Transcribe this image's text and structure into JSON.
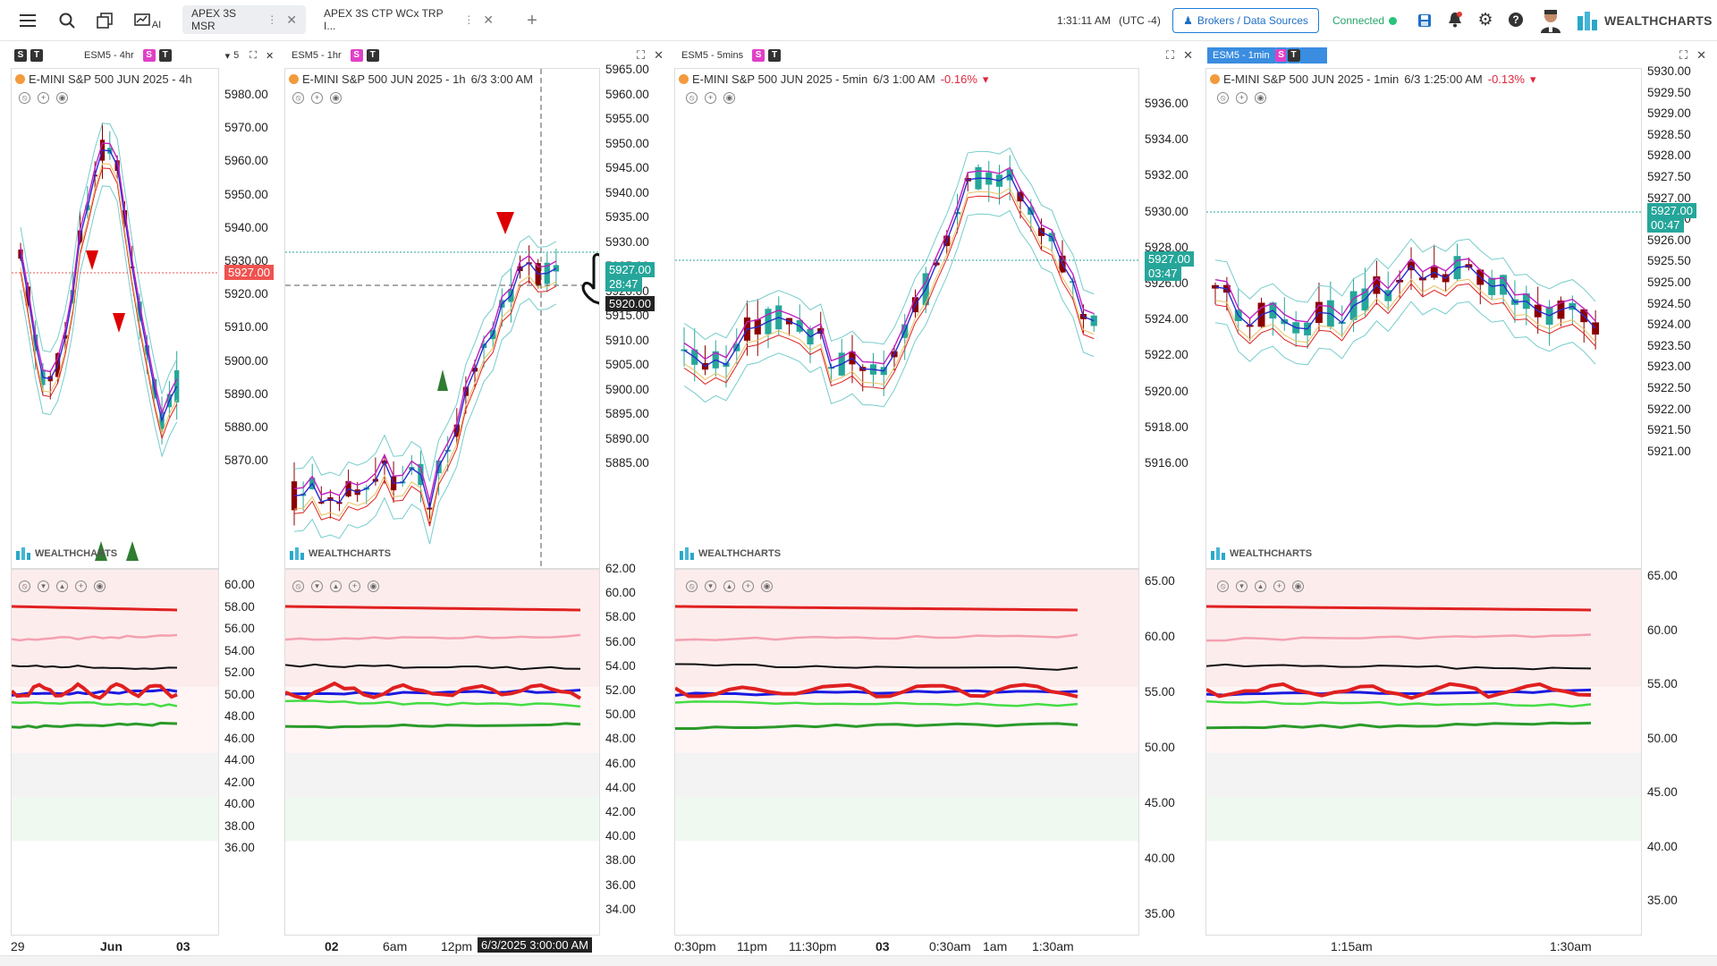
{
  "topbar": {
    "menu_icon": "menu-icon",
    "tabs": [
      {
        "label": "APEX 3S MSR"
      },
      {
        "label": "APEX 3S CTP WCx TRP I..."
      }
    ],
    "clock": "1:31:11 AM",
    "tz": "(UTC -4)",
    "brokers_label": "Brokers / Data Sources",
    "connected_label": "Connected",
    "brand": "WEALTHCHARTS",
    "ai_label": "AI",
    "layout_count": "5"
  },
  "panes": [
    {
      "symbol": "ESM5 - 4hr",
      "title": "E-MINI S&P 500 JUN 2025 - 4h",
      "price_ticks": [
        "5980.00",
        "5970.00",
        "5960.00",
        "5950.00",
        "5940.00",
        "5930.00",
        "5920.00",
        "5910.00",
        "5900.00",
        "5890.00",
        "5880.00",
        "5870.00"
      ],
      "price_label": "5927.00",
      "osc_ticks": [
        "60.00",
        "58.00",
        "56.00",
        "54.00",
        "52.00",
        "50.00",
        "48.00",
        "46.00",
        "44.00",
        "42.00",
        "40.00",
        "38.00",
        "36.00"
      ],
      "x_ticks": [
        "29",
        "Jun",
        "03"
      ]
    },
    {
      "symbol": "ESM5 - 1hr",
      "title": "E-MINI S&P 500 JUN 2025 - 1h",
      "date": "6/3 3:00 AM",
      "price_ticks": [
        "5965.00",
        "5960.00",
        "5955.00",
        "5950.00",
        "5945.00",
        "5940.00",
        "5935.00",
        "5930.00",
        "5925.00",
        "5920.00",
        "5915.00",
        "5910.00",
        "5905.00",
        "5900.00",
        "5895.00",
        "5890.00",
        "5885.00"
      ],
      "price_label": "5927.00",
      "countdown": "28:47",
      "crosshair_label": "5920.00",
      "osc_ticks": [
        "62.00",
        "60.00",
        "58.00",
        "56.00",
        "54.00",
        "52.00",
        "50.00",
        "48.00",
        "46.00",
        "44.00",
        "42.00",
        "40.00",
        "38.00",
        "36.00",
        "34.00"
      ],
      "x_ticks": [
        "02",
        "6am",
        "12pm"
      ],
      "crosshair_date": "6/3/2025 3:00:00 AM"
    },
    {
      "symbol": "ESM5 - 5mins",
      "title": "E-MINI S&P 500 JUN 2025 - 5min",
      "date": "6/3 1:00 AM",
      "change": "-0.16%",
      "price_ticks": [
        "5936.00",
        "5934.00",
        "5932.00",
        "5930.00",
        "5928.00",
        "5926.00",
        "5924.00",
        "5922.00",
        "5920.00",
        "5918.00",
        "5916.00"
      ],
      "price_label": "5927.00",
      "countdown": "03:47",
      "osc_ticks": [
        "65.00",
        "60.00",
        "55.00",
        "50.00",
        "45.00",
        "40.00",
        "35.00"
      ],
      "x_ticks": [
        "0:30pm",
        "11pm",
        "11:30pm",
        "03",
        "0:30am",
        "1am",
        "1:30am"
      ]
    },
    {
      "symbol": "ESM5 - 1min",
      "title": "E-MINI S&P 500 JUN 2025 - 1min",
      "date": "6/3 1:25:00 AM",
      "change": "-0.13%",
      "price_ticks": [
        "5930.00",
        "5929.50",
        "5929.00",
        "5928.50",
        "5928.00",
        "5927.50",
        "5927.00",
        "5926.50",
        "5926.00",
        "5925.50",
        "5925.00",
        "5924.50",
        "5924.00",
        "5923.50",
        "5923.00",
        "5922.50",
        "5922.00",
        "5921.50",
        "5921.00"
      ],
      "price_label": "5927.00",
      "countdown": "00:47",
      "osc_ticks": [
        "65.00",
        "60.00",
        "55.00",
        "50.00",
        "45.00",
        "40.00",
        "35.00"
      ],
      "x_ticks": [
        "1:15am",
        "1:30am"
      ]
    }
  ],
  "watermark": "WEALTHCHARTS",
  "colors": {
    "up": "#26a69a",
    "down": "#8b0000",
    "price_tag": "#26a69a",
    "red_tag": "#ef5350"
  }
}
